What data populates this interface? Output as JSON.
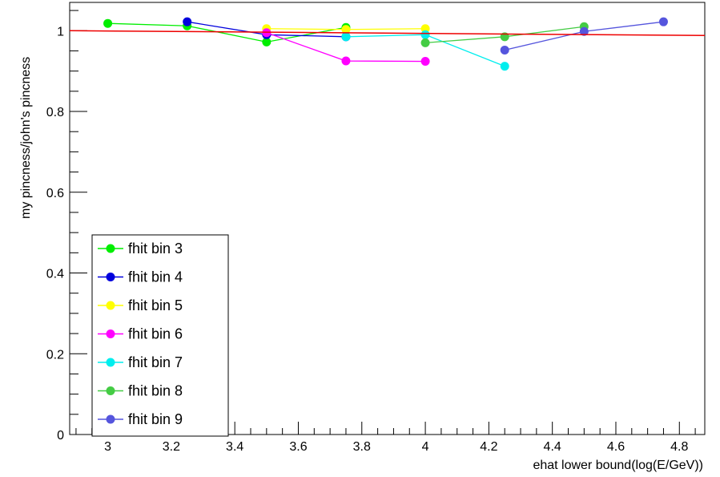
{
  "chart_data": {
    "type": "scatter",
    "title": "",
    "xlabel": "ehat lower bound(log(E/GeV))",
    "ylabel": "my pincness/john's pincness",
    "xlim": [
      2.88,
      4.88
    ],
    "ylim": [
      0,
      1.07
    ],
    "x_ticks": [
      {
        "value": 3.0,
        "label": "3"
      },
      {
        "value": 3.2,
        "label": "3.2"
      },
      {
        "value": 3.4,
        "label": "3.4"
      },
      {
        "value": 3.6,
        "label": "3.6"
      },
      {
        "value": 3.8,
        "label": "3.8"
      },
      {
        "value": 4.0,
        "label": "4"
      },
      {
        "value": 4.2,
        "label": "4.2"
      },
      {
        "value": 4.4,
        "label": "4.4"
      },
      {
        "value": 4.6,
        "label": "4.6"
      },
      {
        "value": 4.8,
        "label": "4.8"
      }
    ],
    "y_ticks": [
      {
        "value": 0,
        "label": "0"
      },
      {
        "value": 0.2,
        "label": "0.2"
      },
      {
        "value": 0.4,
        "label": "0.4"
      },
      {
        "value": 0.6,
        "label": "0.6"
      },
      {
        "value": 0.8,
        "label": "0.8"
      },
      {
        "value": 1.0,
        "label": "1"
      }
    ],
    "grid": false,
    "legend_position": "bottom-left",
    "series": [
      {
        "name": "fhit bin 3",
        "color": "#00ee00",
        "points": [
          [
            3.0,
            1.018
          ],
          [
            3.25,
            1.012
          ],
          [
            3.5,
            0.972
          ],
          [
            3.75,
            1.008
          ]
        ]
      },
      {
        "name": "fhit bin 4",
        "color": "#0000dd",
        "points": [
          [
            3.25,
            1.022
          ],
          [
            3.5,
            0.99
          ],
          [
            3.75,
            0.985
          ]
        ]
      },
      {
        "name": "fhit bin 5",
        "color": "#ffff00",
        "points": [
          [
            3.5,
            1.005
          ],
          [
            3.75,
            1.003
          ],
          [
            4.0,
            1.005
          ]
        ]
      },
      {
        "name": "fhit bin 6",
        "color": "#ff00ff",
        "points": [
          [
            3.5,
            0.995
          ],
          [
            3.75,
            0.925
          ],
          [
            4.0,
            0.924
          ]
        ]
      },
      {
        "name": "fhit bin 7",
        "color": "#00eeee",
        "points": [
          [
            3.75,
            0.985
          ],
          [
            4.0,
            0.99
          ],
          [
            4.25,
            0.912
          ]
        ]
      },
      {
        "name": "fhit bin 8",
        "color": "#44cc44",
        "points": [
          [
            4.0,
            0.97
          ],
          [
            4.25,
            0.985
          ],
          [
            4.5,
            1.01
          ]
        ]
      },
      {
        "name": "fhit bin 9",
        "color": "#5555dd",
        "points": [
          [
            4.25,
            0.952
          ],
          [
            4.5,
            0.998
          ],
          [
            4.75,
            1.022
          ]
        ]
      }
    ],
    "reference_line": {
      "color": "#ee0000",
      "points": [
        [
          2.88,
          1.0
        ],
        [
          4.88,
          0.988
        ]
      ]
    }
  }
}
